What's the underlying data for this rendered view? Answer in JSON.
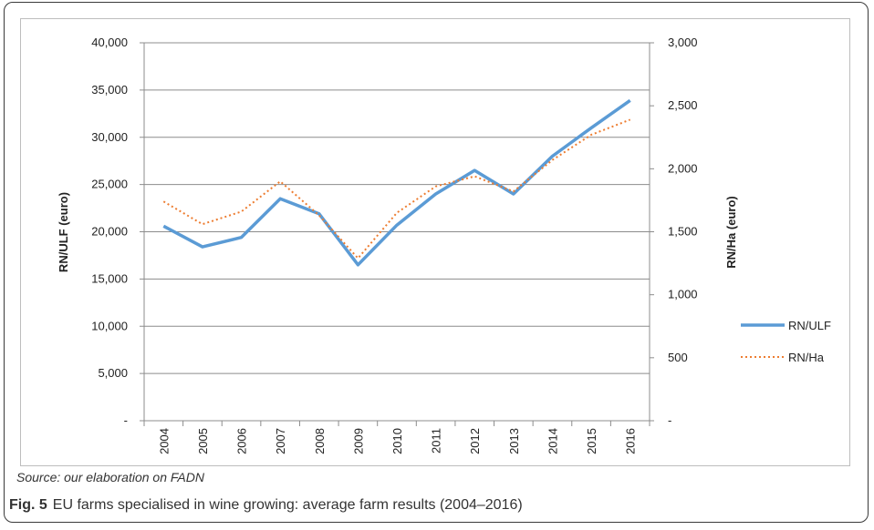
{
  "chart_data": {
    "type": "line",
    "x": [
      "2004",
      "2005",
      "2006",
      "2007",
      "2008",
      "2009",
      "2010",
      "2011",
      "2012",
      "2013",
      "2014",
      "2015",
      "2016"
    ],
    "left_axis": {
      "label": "RN/ULF (euro)",
      "ylim": [
        0,
        40000
      ],
      "ticks": [
        "-",
        "5,000",
        "10,000",
        "15,000",
        "20,000",
        "25,000",
        "30,000",
        "35,000",
        "40,000"
      ]
    },
    "right_axis": {
      "label": "RN/Ha (euro)",
      "ylim": [
        0,
        3000
      ],
      "ticks": [
        "-",
        "500",
        "1,000",
        "1,500",
        "2,000",
        "2,500",
        "3,000"
      ]
    },
    "grid": true,
    "legend_position": "right",
    "series": [
      {
        "name": "RN/ULF",
        "axis": "left",
        "style": "solid",
        "color": "#5b9bd5",
        "values": [
          20600,
          18400,
          19400,
          23500,
          21900,
          16500,
          20700,
          24000,
          26500,
          24000,
          28000,
          31000,
          33900
        ]
      },
      {
        "name": "RN/Ha",
        "axis": "right",
        "style": "dotted",
        "color": "#ed7d31",
        "values": [
          1740,
          1560,
          1660,
          1900,
          1630,
          1290,
          1650,
          1860,
          1940,
          1820,
          2070,
          2270,
          2390
        ]
      }
    ]
  },
  "source_text": "Source: our elaboration on FADN",
  "caption": {
    "label": "Fig. 5",
    "text": "EU farms specialised in wine growing: average farm results (2004–2016)"
  }
}
